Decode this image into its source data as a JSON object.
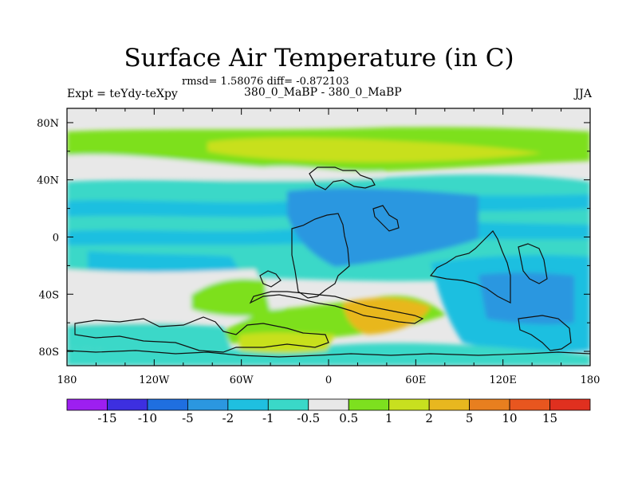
{
  "title": "Surface Air Temperature (in C)",
  "stats": "rmsd= 1.58076 diff= -0.872103",
  "left_label": "Expt = teYdy-teXpy",
  "center_label": "380_0_MaBP - 380_0_MaBP",
  "season": "JJA",
  "chart_data": {
    "type": "heatmap",
    "title": "Surface Air Temperature (in C)",
    "subtitle": "380_0_MaBP - 380_0_MaBP",
    "x_ticks": [
      "180",
      "120W",
      "60W",
      "0",
      "60E",
      "120E",
      "180"
    ],
    "x_tick_values": [
      -180,
      -120,
      -60,
      0,
      60,
      120,
      180
    ],
    "y_ticks": [
      "80N",
      "40N",
      "0",
      "40S",
      "80S"
    ],
    "y_tick_values": [
      80,
      40,
      0,
      -40,
      -80
    ],
    "xlim": [
      -180,
      180
    ],
    "ylim": [
      -90,
      90
    ],
    "colorbar": {
      "labels": [
        "-15",
        "-10",
        "-5",
        "-2",
        "-1",
        "-0.5",
        "0.5",
        "1",
        "2",
        "5",
        "10",
        "15"
      ],
      "colors": [
        "#9d1ff0",
        "#3d2fe0",
        "#1f6fe0",
        "#2b97e0",
        "#1fbfe0",
        "#3ad8c8",
        "#e8e8e8",
        "#7de01f",
        "#c8e01f",
        "#e8b71f",
        "#e87f1f",
        "#e8561f",
        "#e0301f"
      ]
    },
    "bands": [
      {
        "lat_from": 90,
        "lat_to": 70,
        "category": "-0.5 to 0.5"
      },
      {
        "lat_from": 70,
        "lat_to": 45,
        "category": "0.5 to 2"
      },
      {
        "lat_from": 45,
        "lat_to": 32,
        "category": "-0.5 to 0.5"
      },
      {
        "lat_from": 32,
        "lat_to": -30,
        "category": "-5 to -1"
      },
      {
        "lat_from": -30,
        "lat_to": -60,
        "category": "-2 to 5"
      },
      {
        "lat_from": -60,
        "lat_to": -90,
        "category": "-0.5 to 1"
      }
    ]
  }
}
